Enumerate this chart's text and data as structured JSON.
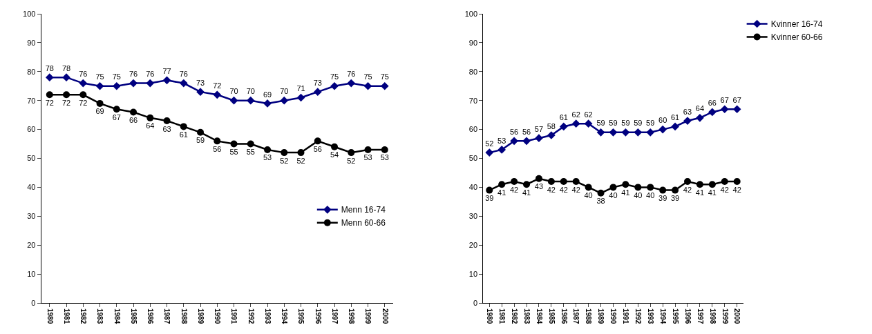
{
  "chart_data": [
    {
      "type": "line",
      "categories": [
        "1980",
        "1981",
        "1982",
        "1983",
        "1984",
        "1985",
        "1986",
        "1987",
        "1988",
        "1989",
        "1990",
        "1991",
        "1992",
        "1993",
        "1994",
        "1995",
        "1996",
        "1997",
        "1998",
        "1999",
        "2000"
      ],
      "ylim": [
        0,
        100
      ],
      "yticks": [
        0,
        10,
        20,
        30,
        40,
        50,
        60,
        70,
        80,
        90,
        100
      ],
      "grid": false,
      "legend": "bottom right",
      "data_labels": true,
      "series": [
        {
          "name": "Menn 16-74",
          "color": "#000080",
          "marker": "diamond",
          "values": [
            78,
            78,
            76,
            75,
            75,
            76,
            76,
            77,
            76,
            73,
            72,
            70,
            70,
            69,
            70,
            71,
            73,
            75,
            76,
            75,
            75
          ]
        },
        {
          "name": "Menn 60-66",
          "color": "#000000",
          "marker": "circle",
          "values": [
            72,
            72,
            72,
            69,
            67,
            66,
            64,
            63,
            61,
            59,
            56,
            55,
            55,
            53,
            52,
            52,
            56,
            54,
            52,
            53,
            53
          ]
        }
      ]
    },
    {
      "type": "line",
      "categories": [
        "1980",
        "1981",
        "1982",
        "1983",
        "1984",
        "1985",
        "1986",
        "1987",
        "1988",
        "1989",
        "1990",
        "1991",
        "1992",
        "1993",
        "1994",
        "1995",
        "1996",
        "1997",
        "1998",
        "1999",
        "2000"
      ],
      "ylim": [
        0,
        100
      ],
      "yticks": [
        0,
        10,
        20,
        30,
        40,
        50,
        60,
        70,
        80,
        90,
        100
      ],
      "grid": false,
      "legend": "top right",
      "data_labels": true,
      "series": [
        {
          "name": "Kvinner 16-74",
          "color": "#000080",
          "marker": "diamond",
          "values": [
            52,
            53,
            56,
            56,
            57,
            58,
            61,
            62,
            62,
            59,
            59,
            59,
            59,
            59,
            60,
            61,
            63,
            64,
            66,
            67,
            67
          ]
        },
        {
          "name": "Kvinner 60-66",
          "color": "#000000",
          "marker": "circle",
          "values": [
            39,
            41,
            42,
            41,
            43,
            42,
            42,
            42,
            40,
            38,
            40,
            41,
            40,
            40,
            39,
            39,
            42,
            41,
            41,
            42,
            42
          ]
        }
      ]
    }
  ]
}
